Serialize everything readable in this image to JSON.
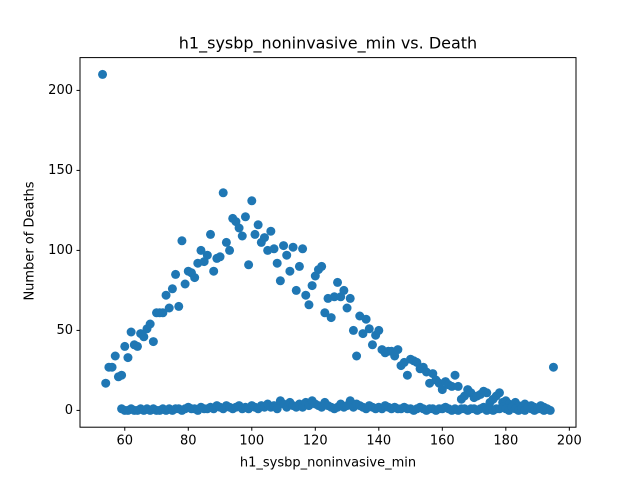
{
  "chart_data": {
    "type": "scatter",
    "title": "h1_sysbp_noninvasive_min vs. Death",
    "x_label": "h1_sysbp_noninvasive_min",
    "y_label": "Number of Deaths",
    "color": "#1f77b4",
    "xlim": [
      45.9,
      202.1
    ],
    "ylim": [
      -10.5,
      220.5
    ],
    "xticks": [
      60,
      80,
      100,
      120,
      140,
      160,
      180,
      200
    ],
    "yticks": [
      0,
      50,
      100,
      150,
      200
    ],
    "x": [
      53,
      54,
      55,
      56,
      57,
      58,
      59,
      60,
      61,
      62,
      63,
      64,
      65,
      66,
      67,
      68,
      69,
      70,
      71,
      72,
      73,
      74,
      75,
      76,
      77,
      78,
      79,
      80,
      81,
      82,
      83,
      84,
      85,
      86,
      87,
      88,
      89,
      90,
      91,
      92,
      93,
      94,
      95,
      96,
      97,
      98,
      99,
      100,
      101,
      102,
      103,
      104,
      105,
      106,
      107,
      108,
      109,
      110,
      111,
      112,
      113,
      114,
      115,
      116,
      117,
      118,
      119,
      120,
      121,
      122,
      123,
      124,
      125,
      126,
      127,
      128,
      129,
      130,
      131,
      132,
      133,
      134,
      135,
      136,
      137,
      138,
      139,
      140,
      141,
      142,
      143,
      144,
      145,
      146,
      147,
      148,
      149,
      150,
      151,
      152,
      153,
      154,
      155,
      156,
      157,
      158,
      159,
      160,
      161,
      162,
      163,
      164,
      165,
      166,
      167,
      168,
      169,
      170,
      171,
      172,
      173,
      174,
      175,
      176,
      177,
      178,
      179,
      180,
      181,
      182,
      183,
      184,
      185,
      186,
      187,
      188,
      189,
      190,
      191,
      192,
      193,
      195,
      59,
      60,
      61,
      62,
      63,
      64,
      65,
      66,
      67,
      68,
      69,
      70,
      71,
      72,
      73,
      74,
      75,
      76,
      77,
      78,
      79,
      80,
      81,
      82,
      83,
      84,
      85,
      86,
      87,
      88,
      89,
      90,
      91,
      92,
      93,
      94,
      95,
      96,
      97,
      98,
      99,
      100,
      101,
      102,
      103,
      104,
      105,
      106,
      107,
      108,
      109,
      110,
      111,
      112,
      113,
      114,
      115,
      116,
      117,
      118,
      119,
      120,
      121,
      122,
      123,
      124,
      125,
      126,
      127,
      128,
      129,
      130,
      131,
      132,
      133,
      134,
      135,
      136,
      137,
      138,
      139,
      140,
      141,
      142,
      143,
      144,
      145,
      146,
      147,
      148,
      149,
      150,
      151,
      152,
      153,
      154,
      155,
      156,
      157,
      158,
      159,
      160,
      161,
      162,
      163,
      164,
      165,
      166,
      167,
      168,
      169,
      170,
      171,
      172,
      173,
      174,
      175,
      176,
      177,
      178,
      179,
      180,
      181,
      182,
      183,
      184,
      185,
      186,
      187,
      188,
      189,
      190,
      191,
      192,
      193,
      194
    ],
    "values": [
      210,
      17,
      27,
      27,
      34,
      21,
      22,
      40,
      33,
      49,
      41,
      40,
      48,
      46,
      51,
      54,
      43,
      61,
      61,
      61,
      72,
      64,
      76,
      85,
      65,
      106,
      79,
      87,
      86,
      83,
      92,
      100,
      93,
      97,
      110,
      87,
      95,
      96,
      136,
      105,
      100,
      120,
      118,
      114,
      109,
      121,
      91,
      131,
      110,
      116,
      105,
      108,
      100,
      112,
      101,
      92,
      81,
      103,
      97,
      87,
      102,
      75,
      90,
      101,
      72,
      66,
      78,
      84,
      88,
      90,
      61,
      70,
      58,
      71,
      80,
      71,
      75,
      64,
      70,
      50,
      34,
      59,
      48,
      57,
      51,
      41,
      47,
      50,
      38,
      36,
      37,
      37,
      34,
      38,
      28,
      30,
      22,
      32,
      31,
      30,
      26,
      27,
      24,
      17,
      23,
      19,
      17,
      13,
      18,
      16,
      15,
      22,
      15,
      7,
      9,
      13,
      11,
      8,
      9,
      10,
      12,
      11,
      5,
      7,
      9,
      11,
      5,
      6,
      4,
      3,
      5,
      3,
      2,
      4,
      2,
      3,
      2,
      1,
      3,
      2,
      1,
      27,
      1,
      0,
      0,
      1,
      0,
      0,
      1,
      0,
      1,
      0,
      1,
      0,
      0,
      1,
      0,
      1,
      0,
      1,
      1,
      0,
      1,
      2,
      1,
      1,
      0,
      2,
      1,
      1,
      2,
      1,
      3,
      2,
      1,
      3,
      2,
      1,
      2,
      3,
      1,
      2,
      1,
      3,
      2,
      1,
      3,
      2,
      4,
      2,
      3,
      1,
      6,
      4,
      2,
      5,
      3,
      2,
      4,
      2,
      5,
      3,
      6,
      4,
      3,
      2,
      5,
      3,
      2,
      1,
      2,
      4,
      2,
      3,
      6,
      2,
      4,
      3,
      2,
      1,
      3,
      2,
      1,
      2,
      1,
      3,
      2,
      1,
      2,
      1,
      1,
      2,
      1,
      1,
      0,
      1,
      2,
      1,
      0,
      1,
      1,
      0,
      1,
      1,
      2,
      1,
      0,
      1,
      0,
      1,
      1,
      0,
      1,
      1,
      0,
      1,
      2,
      0,
      1,
      0,
      1,
      1,
      2,
      1,
      0,
      2,
      1,
      0,
      1,
      0,
      2,
      1,
      0,
      1,
      1,
      0,
      1,
      0
    ]
  }
}
